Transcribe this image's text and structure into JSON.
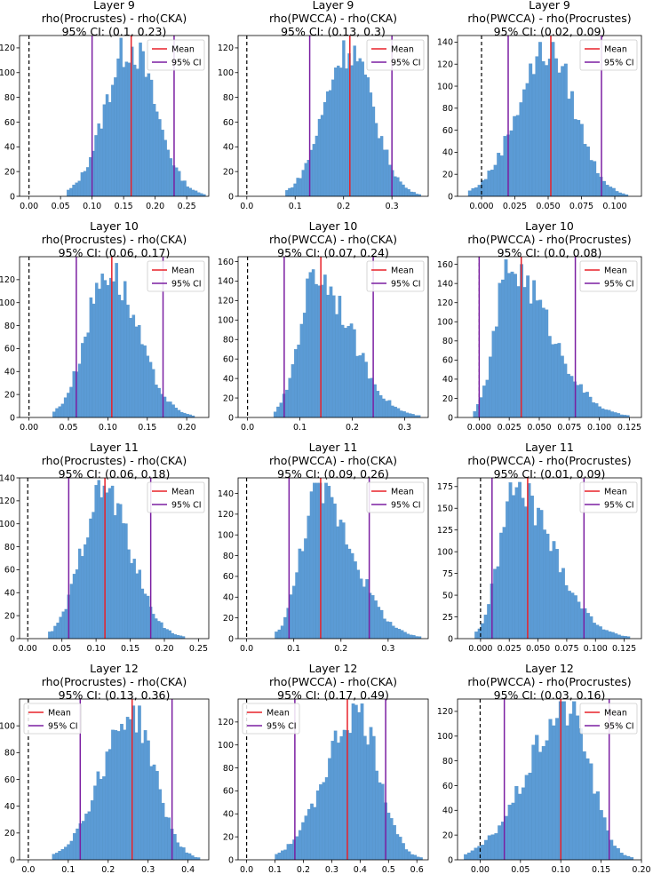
{
  "legend_labels": {
    "mean": "Mean",
    "ci": "95% CI"
  },
  "colors": {
    "hist": "#5b9bd5",
    "hist_edge": "#4f8ec4",
    "mean": "#e8222a",
    "ci": "#7b1fa2",
    "zero": "#000000"
  },
  "chart_data": [
    {
      "type": "bar",
      "title": [
        "Layer 9",
        "rho(Procrustes) - rho(CKA)",
        "95% CI: (0.1, 0.23)"
      ],
      "xlim": [
        -0.015,
        0.285
      ],
      "ylim": [
        0,
        130
      ],
      "xticks": [
        0.0,
        0.05,
        0.1,
        0.15,
        0.2,
        0.25
      ],
      "xticklabels": [
        "0.00",
        "0.05",
        "0.10",
        "0.15",
        "0.20",
        "0.25"
      ],
      "yticks": [
        0,
        20,
        40,
        60,
        80,
        100,
        120
      ],
      "mean": 0.162,
      "ci": [
        0.1,
        0.23
      ],
      "legend_loc": "upper right",
      "bins": {
        "start": 0.06,
        "end": 0.28,
        "peak": 0.16,
        "max": 128
      }
    },
    {
      "type": "bar",
      "title": [
        "Layer 9",
        "rho(PWCCA) - rho(CKA)",
        "95% CI: (0.13, 0.3)"
      ],
      "xlim": [
        -0.018,
        0.375
      ],
      "ylim": [
        0,
        130
      ],
      "xticks": [
        0.0,
        0.1,
        0.2,
        0.3
      ],
      "xticklabels": [
        "0.0",
        "0.1",
        "0.2",
        "0.3"
      ],
      "yticks": [
        0,
        20,
        40,
        60,
        80,
        100,
        120
      ],
      "mean": 0.213,
      "ci": [
        0.13,
        0.3
      ],
      "legend_loc": "upper right",
      "bins": {
        "start": 0.08,
        "end": 0.36,
        "peak": 0.21,
        "max": 126
      }
    },
    {
      "type": "bar",
      "title": [
        "Layer 9",
        "rho(PWCCA) - rho(Procrustes)",
        "95% CI: (0.02, 0.09)"
      ],
      "xlim": [
        -0.018,
        0.12
      ],
      "ylim": [
        0,
        146
      ],
      "xticks": [
        0.0,
        0.025,
        0.05,
        0.075,
        0.1
      ],
      "xticklabels": [
        "0.000",
        "0.025",
        "0.050",
        "0.075",
        "0.100"
      ],
      "yticks": [
        0,
        20,
        40,
        60,
        80,
        100,
        120,
        140
      ],
      "mean": 0.052,
      "ci": [
        0.02,
        0.09
      ],
      "legend_loc": "upper right",
      "bins": {
        "start": -0.01,
        "end": 0.11,
        "peak": 0.05,
        "max": 140
      }
    },
    {
      "type": "bar",
      "title": [
        "Layer 10",
        "rho(Procrustes) - rho(CKA)",
        "95% CI: (0.06, 0.17)"
      ],
      "xlim": [
        -0.012,
        0.228
      ],
      "ylim": [
        0,
        140
      ],
      "xticks": [
        0.0,
        0.05,
        0.1,
        0.15,
        0.2
      ],
      "xticklabels": [
        "0.00",
        "0.05",
        "0.10",
        "0.15",
        "0.20"
      ],
      "yticks": [
        0,
        20,
        40,
        60,
        80,
        100,
        120
      ],
      "mean": 0.105,
      "ci": [
        0.06,
        0.17
      ],
      "legend_loc": "upper right",
      "bins": {
        "start": 0.03,
        "end": 0.21,
        "peak": 0.1,
        "max": 135
      }
    },
    {
      "type": "bar",
      "title": [
        "Layer 10",
        "rho(PWCCA) - rho(CKA)",
        "95% CI: (0.07, 0.24)"
      ],
      "xlim": [
        -0.018,
        0.345
      ],
      "ylim": [
        0,
        165
      ],
      "xticks": [
        0.0,
        0.1,
        0.2,
        0.3
      ],
      "xticklabels": [
        "0.0",
        "0.1",
        "0.2",
        "0.3"
      ],
      "yticks": [
        0,
        20,
        40,
        60,
        80,
        100,
        120,
        140,
        160
      ],
      "mean": 0.14,
      "ci": [
        0.07,
        0.24
      ],
      "legend_loc": "upper right",
      "bins": {
        "start": 0.05,
        "end": 0.33,
        "peak": 0.13,
        "max": 155
      }
    },
    {
      "type": "bar",
      "title": [
        "Layer 10",
        "rho(PWCCA) - rho(Procrustes)",
        "95% CI: (0.0, 0.08)"
      ],
      "xlim": [
        -0.018,
        0.135
      ],
      "ylim": [
        0,
        168
      ],
      "xticks": [
        0.0,
        0.025,
        0.05,
        0.075,
        0.1,
        0.125
      ],
      "xticklabels": [
        "0.000",
        "0.025",
        "0.050",
        "0.075",
        "0.100",
        "0.125"
      ],
      "yticks": [
        0,
        20,
        40,
        60,
        80,
        100,
        120,
        140,
        160
      ],
      "mean": 0.035,
      "ci": [
        0.0,
        0.08
      ],
      "legend_loc": "upper right",
      "bins": {
        "start": -0.005,
        "end": 0.125,
        "peak": 0.025,
        "max": 165
      }
    },
    {
      "type": "bar",
      "title": [
        "Layer 11",
        "rho(Procrustes) - rho(CKA)",
        "95% CI: (0.06, 0.18)"
      ],
      "xlim": [
        -0.012,
        0.265
      ],
      "ylim": [
        0,
        140
      ],
      "xticks": [
        0.0,
        0.05,
        0.1,
        0.15,
        0.2,
        0.25
      ],
      "xticklabels": [
        "0.00",
        "0.05",
        "0.10",
        "0.15",
        "0.20",
        "0.25"
      ],
      "yticks": [
        0,
        20,
        40,
        60,
        80,
        100,
        120,
        140
      ],
      "mean": 0.113,
      "ci": [
        0.06,
        0.18
      ],
      "legend_loc": "upper right",
      "bins": {
        "start": 0.03,
        "end": 0.23,
        "peak": 0.11,
        "max": 138
      }
    },
    {
      "type": "bar",
      "title": [
        "Layer 11",
        "rho(PWCCA) - rho(CKA)",
        "95% CI: (0.09, 0.26)"
      ],
      "xlim": [
        -0.018,
        0.385
      ],
      "ylim": [
        0,
        155
      ],
      "xticks": [
        0.0,
        0.1,
        0.2,
        0.3
      ],
      "xticklabels": [
        "0.0",
        "0.1",
        "0.2",
        "0.3"
      ],
      "yticks": [
        0,
        20,
        40,
        60,
        80,
        100,
        120,
        140
      ],
      "mean": 0.157,
      "ci": [
        0.09,
        0.26
      ],
      "legend_loc": "upper right",
      "bins": {
        "start": 0.06,
        "end": 0.37,
        "peak": 0.15,
        "max": 150
      }
    },
    {
      "type": "bar",
      "title": [
        "Layer 11",
        "rho(PWCCA) - rho(Procrustes)",
        "95% CI: (0.01, 0.09)"
      ],
      "xlim": [
        -0.02,
        0.14
      ],
      "ylim": [
        0,
        185
      ],
      "xticks": [
        0.0,
        0.025,
        0.05,
        0.075,
        0.1,
        0.125
      ],
      "xticklabels": [
        "0.000",
        "0.025",
        "0.050",
        "0.075",
        "0.100",
        "0.125"
      ],
      "yticks": [
        0,
        25,
        50,
        75,
        100,
        125,
        150,
        175
      ],
      "mean": 0.041,
      "ci": [
        0.01,
        0.09
      ],
      "legend_loc": "upper right",
      "bins": {
        "start": -0.005,
        "end": 0.13,
        "peak": 0.03,
        "max": 180
      }
    },
    {
      "type": "bar",
      "title": [
        "Layer 12",
        "rho(Procrustes) - rho(CKA)",
        "95% CI: (0.13, 0.36)"
      ],
      "xlim": [
        -0.022,
        0.452
      ],
      "ylim": [
        0,
        120
      ],
      "xticks": [
        0.0,
        0.1,
        0.2,
        0.3,
        0.4
      ],
      "xticklabels": [
        "0.0",
        "0.1",
        "0.2",
        "0.3",
        "0.4"
      ],
      "yticks": [
        0,
        20,
        40,
        60,
        80,
        100
      ],
      "mean": 0.26,
      "ci": [
        0.13,
        0.36
      ],
      "legend_loc": "upper left",
      "bins": {
        "start": 0.06,
        "end": 0.43,
        "peak": 0.26,
        "max": 115
      }
    },
    {
      "type": "bar",
      "title": [
        "Layer 12",
        "rho(PWCCA) - rho(CKA)",
        "95% CI: (0.17, 0.49)"
      ],
      "xlim": [
        -0.03,
        0.64
      ],
      "ylim": [
        0,
        140
      ],
      "xticks": [
        0.0,
        0.1,
        0.2,
        0.3,
        0.4,
        0.5,
        0.6
      ],
      "xticklabels": [
        "0.0",
        "0.1",
        "0.2",
        "0.3",
        "0.4",
        "0.5",
        "0.6"
      ],
      "yticks": [
        0,
        20,
        40,
        60,
        80,
        100,
        120
      ],
      "mean": 0.355,
      "ci": [
        0.17,
        0.49
      ],
      "legend_loc": "upper left",
      "bins": {
        "start": 0.1,
        "end": 0.62,
        "peak": 0.39,
        "max": 136
      }
    },
    {
      "type": "bar",
      "title": [
        "Layer 12",
        "rho(PWCCA) - rho(Procrustes)",
        "95% CI: (0.03, 0.16)"
      ],
      "xlim": [
        -0.028,
        0.2
      ],
      "ylim": [
        0,
        130
      ],
      "xticks": [
        0.0,
        0.05,
        0.1,
        0.15,
        0.2
      ],
      "xticklabels": [
        "0.00",
        "0.05",
        "0.10",
        "0.15",
        "0.20"
      ],
      "yticks": [
        0,
        20,
        40,
        60,
        80,
        100,
        120
      ],
      "mean": 0.1,
      "ci": [
        0.03,
        0.16
      ],
      "legend_loc": "upper right",
      "bins": {
        "start": -0.02,
        "end": 0.19,
        "peak": 0.11,
        "max": 128
      }
    }
  ]
}
